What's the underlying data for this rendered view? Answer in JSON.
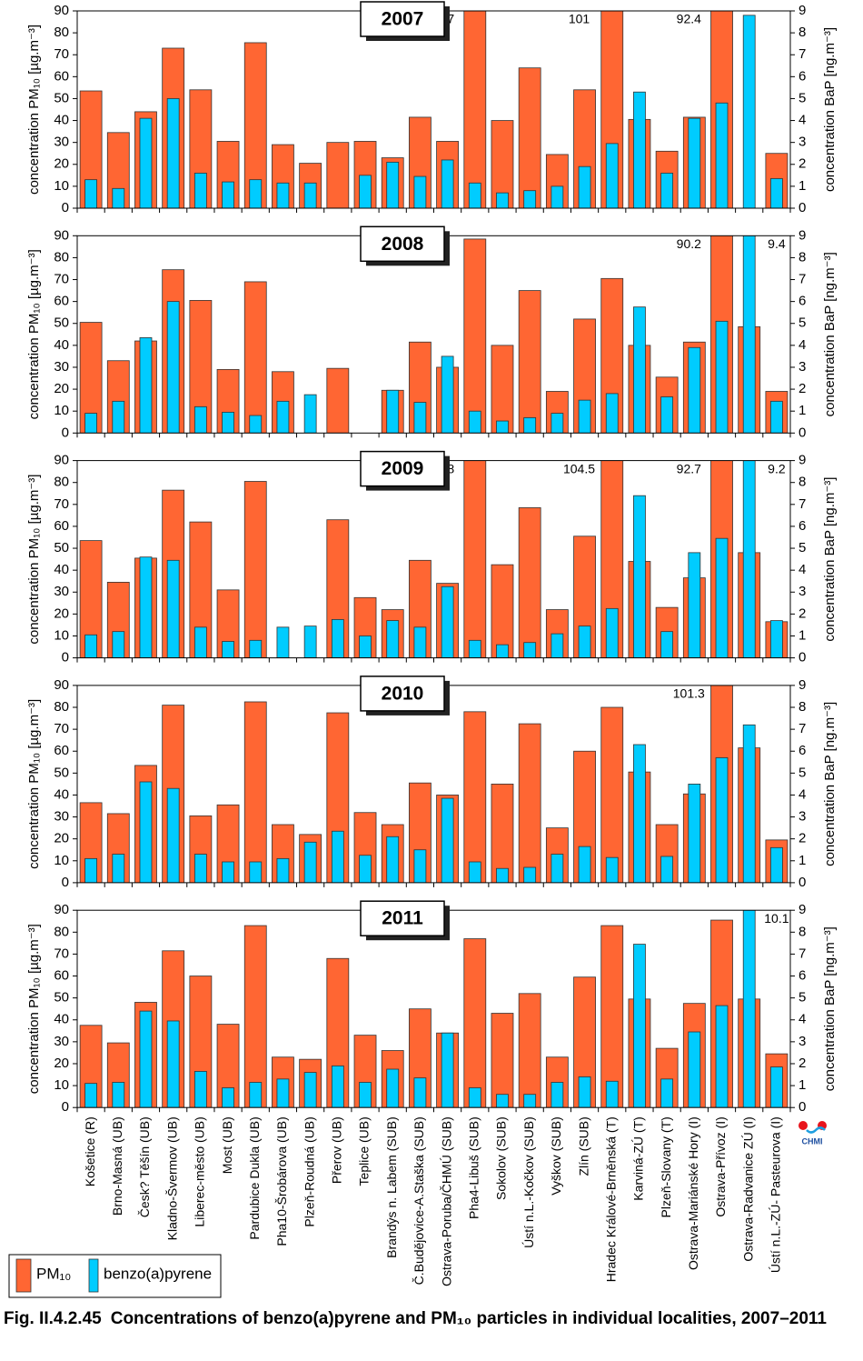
{
  "logo": "CHMI",
  "caption_label": "Fig. II.4.2.45",
  "caption_text": "Concentrations of benzo(a)pyrene and PM₁₀ particles in individual localities, 2007–2011",
  "chart_data": [
    {
      "type": "bar",
      "title": "2007",
      "ylabel": "concentration PM₁₀ [µg.m⁻³]",
      "y2label": "concentration BaP [ng.m⁻³]",
      "ylim": [
        0,
        90
      ],
      "yticks": [
        0,
        10,
        20,
        30,
        40,
        50,
        60,
        70,
        80,
        90
      ],
      "y2lim": [
        0,
        9
      ],
      "y2ticks": [
        0,
        1,
        2,
        3,
        4,
        5,
        6,
        7,
        8,
        9
      ],
      "series": [
        {
          "name": "PM₁₀",
          "color": "#ff6633",
          "values": [
            53.5,
            34.5,
            44,
            73,
            54,
            30.5,
            75.5,
            29,
            20.5,
            30,
            30.5,
            23,
            41.5,
            30.5,
            91.7,
            40,
            64,
            24.5,
            54,
            101,
            40.5,
            26,
            41.5,
            92.4,
            null,
            25
          ],
          "value_labels": [
            null,
            null,
            null,
            null,
            null,
            null,
            null,
            null,
            null,
            null,
            null,
            null,
            null,
            null,
            "91.7",
            null,
            null,
            null,
            null,
            "101",
            null,
            null,
            null,
            "92.4",
            null,
            null
          ]
        },
        {
          "name": "benzo(a)pyrene",
          "color": "#00ccff",
          "axis": "y2",
          "values": [
            1.3,
            0.9,
            4.1,
            5.0,
            1.6,
            1.2,
            1.3,
            1.15,
            1.15,
            null,
            1.5,
            2.1,
            1.45,
            2.2,
            1.15,
            0.7,
            0.8,
            1.0,
            1.9,
            2.95,
            5.3,
            1.6,
            4.1,
            4.8,
            8.8,
            1.35
          ]
        }
      ]
    },
    {
      "type": "bar",
      "title": "2008",
      "ylabel": "concentration PM₁₀ [µg.m⁻³]",
      "y2label": "concentration BaP [ng.m⁻³]",
      "ylim": [
        0,
        90
      ],
      "yticks": [
        0,
        10,
        20,
        30,
        40,
        50,
        60,
        70,
        80,
        90
      ],
      "y2lim": [
        0,
        9
      ],
      "y2ticks": [
        0,
        1,
        2,
        3,
        4,
        5,
        6,
        7,
        8,
        9
      ],
      "series": [
        {
          "color": "#ff6633",
          "values": [
            50.5,
            33,
            42,
            74.5,
            60.5,
            29,
            69,
            28,
            null,
            29.5,
            null,
            19.5,
            41.5,
            30,
            88.5,
            40,
            65,
            19,
            52,
            70.5,
            40,
            25.5,
            41.5,
            90.2,
            48.5,
            19
          ],
          "value_labels": [
            null,
            null,
            null,
            null,
            null,
            null,
            null,
            null,
            null,
            null,
            null,
            null,
            null,
            null,
            null,
            null,
            null,
            null,
            null,
            null,
            null,
            null,
            null,
            "90.2",
            null,
            null
          ]
        },
        {
          "color": "#00ccff",
          "axis": "y2",
          "values": [
            0.9,
            1.45,
            4.35,
            6.0,
            1.2,
            0.95,
            0.8,
            1.45,
            1.75,
            null,
            null,
            1.95,
            1.4,
            3.5,
            1.0,
            0.55,
            0.7,
            0.9,
            1.5,
            1.8,
            5.75,
            1.65,
            3.9,
            5.1,
            9.4,
            1.45
          ],
          "value_labels": [
            null,
            null,
            null,
            null,
            null,
            null,
            null,
            null,
            null,
            null,
            null,
            null,
            null,
            null,
            null,
            null,
            null,
            null,
            null,
            null,
            null,
            null,
            null,
            null,
            "9.4",
            null
          ]
        }
      ]
    },
    {
      "type": "bar",
      "title": "2009",
      "ylabel": "concentration PM₁₀ [µg.m⁻³]",
      "y2label": "concentration BaP [ng.m⁻³]",
      "ylim": [
        0,
        90
      ],
      "yticks": [
        0,
        10,
        20,
        30,
        40,
        50,
        60,
        70,
        80,
        90
      ],
      "y2lim": [
        0,
        9
      ],
      "y2ticks": [
        0,
        1,
        2,
        3,
        4,
        5,
        6,
        7,
        8,
        9
      ],
      "series": [
        {
          "color": "#ff6633",
          "values": [
            53.5,
            34.5,
            45.5,
            76.5,
            62,
            31,
            80.5,
            null,
            null,
            63,
            27.5,
            22,
            44.5,
            34,
            96.8,
            42.5,
            68.5,
            22,
            55.5,
            104.5,
            44,
            23,
            36.5,
            92.7,
            48,
            16.5
          ],
          "value_labels": [
            null,
            null,
            null,
            null,
            null,
            null,
            null,
            null,
            null,
            null,
            null,
            null,
            null,
            null,
            "96.8",
            null,
            null,
            null,
            null,
            "104.5",
            null,
            null,
            null,
            "92.7",
            null,
            null
          ]
        },
        {
          "color": "#00ccff",
          "axis": "y2",
          "values": [
            1.05,
            1.2,
            4.6,
            4.45,
            1.4,
            0.75,
            0.8,
            1.4,
            1.45,
            1.75,
            1.0,
            1.7,
            1.4,
            3.25,
            0.8,
            0.6,
            0.7,
            1.1,
            1.45,
            2.25,
            7.4,
            1.2,
            4.8,
            5.45,
            9.2,
            1.7
          ],
          "value_labels": [
            null,
            null,
            null,
            null,
            null,
            null,
            null,
            null,
            null,
            null,
            null,
            null,
            null,
            null,
            null,
            null,
            null,
            null,
            null,
            null,
            null,
            null,
            null,
            null,
            "9.2",
            null
          ]
        }
      ]
    },
    {
      "type": "bar",
      "title": "2010",
      "ylabel": "concentration PM₁₀ [µg.m⁻³]",
      "y2label": "concentration BaP [ng.m⁻³]",
      "ylim": [
        0,
        90
      ],
      "yticks": [
        0,
        10,
        20,
        30,
        40,
        50,
        60,
        70,
        80,
        90
      ],
      "y2lim": [
        0,
        9
      ],
      "y2ticks": [
        0,
        1,
        2,
        3,
        4,
        5,
        6,
        7,
        8,
        9
      ],
      "series": [
        {
          "color": "#ff6633",
          "values": [
            36.5,
            31.5,
            53.5,
            81,
            30.5,
            35.5,
            82.5,
            26.5,
            22,
            77.5,
            32,
            26.5,
            45.5,
            40,
            78,
            45,
            72.5,
            25,
            60,
            80,
            50.5,
            26.5,
            40.5,
            101.3,
            61.5,
            19.5
          ],
          "value_labels": [
            null,
            null,
            null,
            null,
            null,
            null,
            null,
            null,
            null,
            null,
            null,
            null,
            null,
            null,
            null,
            null,
            null,
            null,
            null,
            null,
            null,
            null,
            null,
            "101.3",
            null,
            null
          ]
        },
        {
          "color": "#00ccff",
          "axis": "y2",
          "values": [
            1.1,
            1.3,
            4.6,
            4.3,
            1.3,
            0.95,
            0.95,
            1.1,
            1.85,
            2.35,
            1.25,
            2.1,
            1.5,
            3.85,
            0.95,
            0.65,
            0.7,
            1.3,
            1.65,
            1.15,
            6.3,
            1.2,
            4.5,
            5.7,
            7.2,
            1.6
          ]
        }
      ]
    },
    {
      "type": "bar",
      "title": "2011",
      "ylabel": "concentration PM₁₀ [µg.m⁻³]",
      "y2label": "concentration BaP [ng.m⁻³]",
      "ylim": [
        0,
        90
      ],
      "yticks": [
        0,
        10,
        20,
        30,
        40,
        50,
        60,
        70,
        80,
        90
      ],
      "y2lim": [
        0,
        9
      ],
      "y2ticks": [
        0,
        1,
        2,
        3,
        4,
        5,
        6,
        7,
        8,
        9
      ],
      "categories": [
        "Košetice (R)",
        "Brno-Masná (UB)",
        "Česk? Těšín (UB)",
        "Kladno-Švermov (UB)",
        "Liberec-město (UB)",
        "Most (UB)",
        "Pardubice Dukla (UB)",
        "Pha10-Šrobárova (UB)",
        "Plzeň-Roudná (UB)",
        "Přerov (UB)",
        "Teplice (UB)",
        "Brandýs n. Labem (SUB)",
        "Č.Budějovice-A.Staška (SUB)",
        "Ostrava-Poruba/ČHMÚ (SUB)",
        "Pha4-Libuš (SUB)",
        "Sokolov (SUB)",
        "Ústí n.L.-Kočkov (SUB)",
        "Vyškov (SUB)",
        "Zlín (SUB)",
        "Hradec Králové-Brněnská (T)",
        "Karviná-ZÚ (T)",
        "Plzeň-Slovany (T)",
        "Ostrava-Mariánské Hory (I)",
        "Ostrava-Přívoz (I)",
        "Ostrava-Radvanice ZÚ (I)",
        "Ústí n.L.-ZÚ- Pasteurova (I)"
      ],
      "series": [
        {
          "color": "#ff6633",
          "values": [
            37.5,
            29.5,
            48,
            71.5,
            60,
            38,
            83,
            23,
            22,
            68,
            33,
            26,
            45,
            34,
            77,
            43,
            52,
            23,
            59.5,
            83,
            49.5,
            27,
            47.5,
            85.5,
            49.5,
            24.5
          ]
        },
        {
          "color": "#00ccff",
          "axis": "y2",
          "values": [
            1.1,
            1.15,
            4.4,
            3.95,
            1.65,
            0.9,
            1.15,
            1.3,
            1.6,
            1.9,
            1.15,
            1.75,
            1.35,
            3.4,
            0.9,
            0.6,
            0.6,
            1.15,
            1.4,
            1.2,
            7.45,
            1.3,
            3.45,
            4.65,
            10.1,
            1.85
          ],
          "value_labels": [
            null,
            null,
            null,
            null,
            null,
            null,
            null,
            null,
            null,
            null,
            null,
            null,
            null,
            null,
            null,
            null,
            null,
            null,
            null,
            null,
            null,
            null,
            null,
            null,
            "10.1",
            null
          ]
        }
      ]
    }
  ]
}
